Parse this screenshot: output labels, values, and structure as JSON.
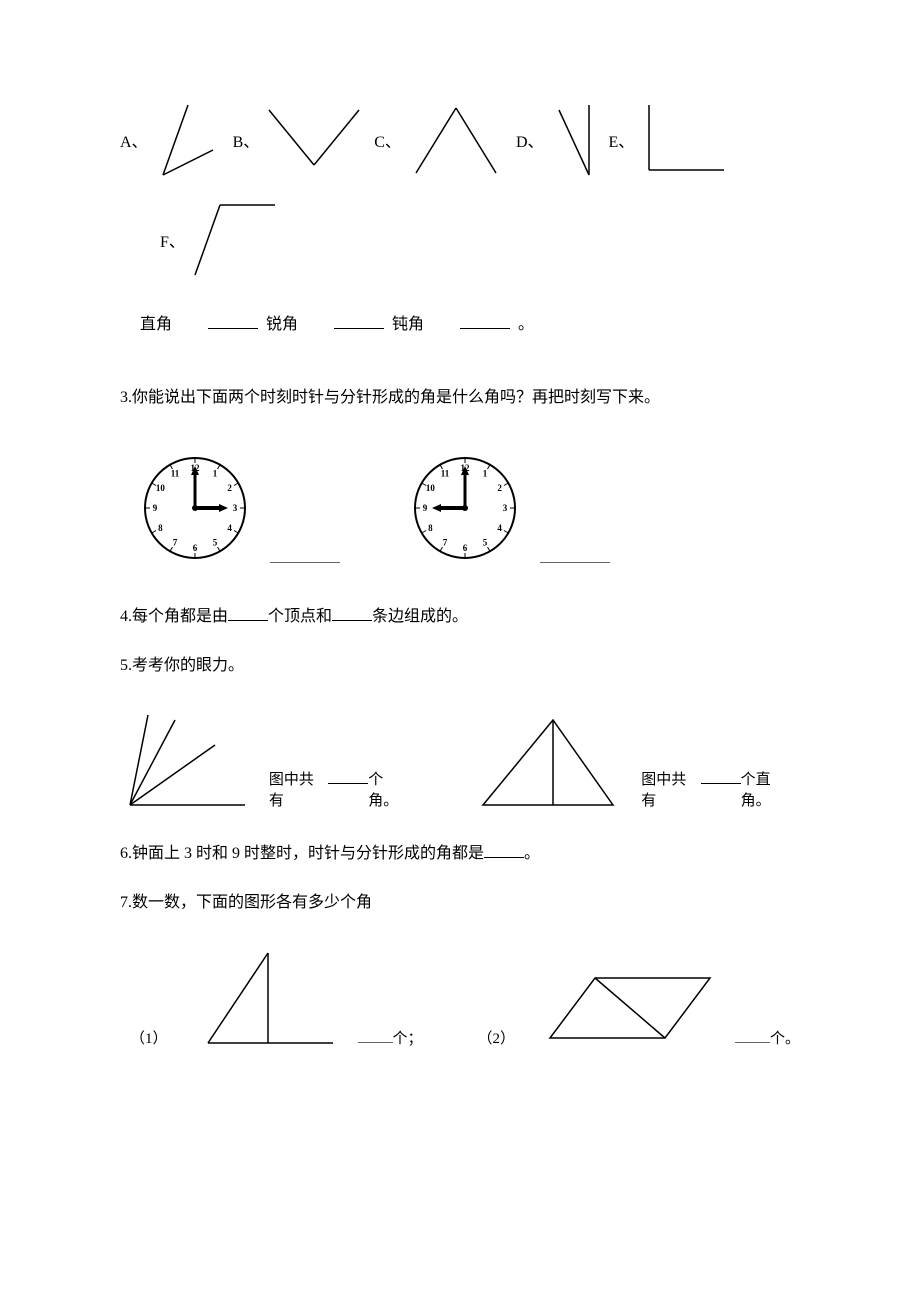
{
  "angles": {
    "A": {
      "label": "A、"
    },
    "B": {
      "label": "B、"
    },
    "C": {
      "label": "C、"
    },
    "D": {
      "label": "D、"
    },
    "E": {
      "label": "E、"
    },
    "F": {
      "label": "F、"
    }
  },
  "classify": {
    "right": "直角",
    "acute": "锐角",
    "obtuse": "钝角",
    "period": "。"
  },
  "q3": {
    "text": "3.你能说出下面两个时刻时针与分针形成的角是什么角吗？再把时刻写下来。",
    "clock1": {
      "hour": 3,
      "minute": 0
    },
    "clock2": {
      "hour": 9,
      "minute": 0
    }
  },
  "q4": {
    "prefix": "4.每个角都是由",
    "mid": "个顶点和",
    "suffix": "条边组成的。"
  },
  "q5": {
    "title": "5.考考你的眼力。",
    "fig1_prefix": "图中共有",
    "fig1_suffix": "个角。",
    "fig2_prefix": "图中共有",
    "fig2_suffix": "个直角。"
  },
  "q6": {
    "prefix": "6.钟面上 3 时和 9 时整时，时针与分针形成的角都是",
    "suffix": "。"
  },
  "q7": {
    "title": "7.数一数，下面的图形各有多少个角",
    "item1_label": "（1）",
    "item1_suffix": "个；",
    "item2_label": "（2）",
    "item2_suffix": "个。"
  },
  "style": {
    "stroke": "#000000",
    "stroke_width": 1.5,
    "clock_face_numbers": [
      "12",
      "1",
      "2",
      "3",
      "4",
      "5",
      "6",
      "7",
      "8",
      "9",
      "10",
      "11"
    ]
  }
}
